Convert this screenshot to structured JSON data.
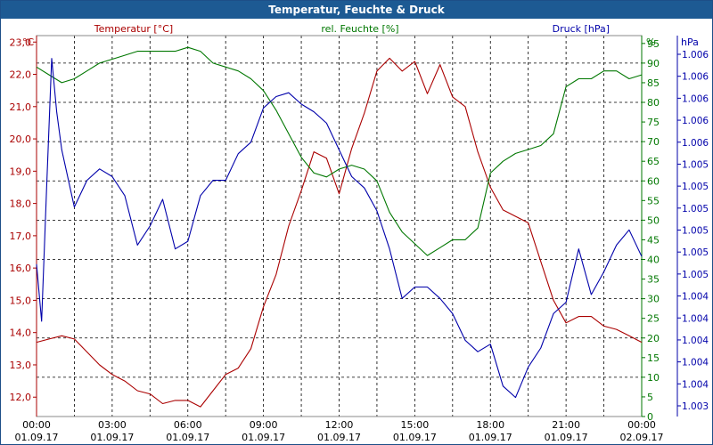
{
  "window": {
    "title": "Temperatur, Feuchte & Druck"
  },
  "chart_data": {
    "type": "line",
    "series_labels": {
      "temperature": "Temperatur [°C]",
      "humidity": "rel. Feuchte [%]",
      "pressure": "Druck [hPa]"
    },
    "axes": {
      "left": {
        "unit": "°C",
        "min": 11.4,
        "max": 23.2,
        "ticks": [
          "23,0",
          "22,0",
          "21,0",
          "20,0",
          "19,0",
          "18,0",
          "17,0",
          "16,0",
          "15,0",
          "14,0",
          "13,0",
          "12,0"
        ],
        "tick_values": [
          23,
          22,
          21,
          20,
          19,
          18,
          17,
          16,
          15,
          14,
          13,
          12
        ]
      },
      "right1": {
        "unit": "%",
        "min": 0,
        "max": 97,
        "ticks": [
          "95",
          "90",
          "85",
          "80",
          "75",
          "70",
          "65",
          "60",
          "55",
          "50",
          "45",
          "40",
          "35",
          "30",
          "25",
          "20",
          "15",
          "10",
          "5",
          "0"
        ],
        "tick_values": [
          95,
          90,
          85,
          80,
          75,
          70,
          65,
          60,
          55,
          50,
          45,
          40,
          35,
          30,
          25,
          20,
          15,
          10,
          5,
          0
        ]
      },
      "right2": {
        "unit": "hPa",
        "ticks": [
          "1.006",
          "1.006",
          "1.006",
          "1.006",
          "1.006",
          "1.005",
          "1.005",
          "1.005",
          "1.005",
          "1.005",
          "1.005",
          "1.004",
          "1.004",
          "1.004",
          "1.004",
          "1.004",
          "1.003"
        ]
      }
    },
    "x_labels": [
      {
        "time": "00:00",
        "date": "01.09.17"
      },
      {
        "time": "03:00",
        "date": "01.09.17"
      },
      {
        "time": "06:00",
        "date": "01.09.17"
      },
      {
        "time": "09:00",
        "date": "01.09.17"
      },
      {
        "time": "12:00",
        "date": "01.09.17"
      },
      {
        "time": "15:00",
        "date": "01.09.17"
      },
      {
        "time": "18:00",
        "date": "01.09.17"
      },
      {
        "time": "21:00",
        "date": "01.09.17"
      },
      {
        "time": "00:00",
        "date": "02.09.17"
      }
    ],
    "x_range_hours": [
      0,
      24
    ],
    "grid": true,
    "colors": {
      "temperature": "#aa0000",
      "humidity": "#007700",
      "pressure": "#0000aa",
      "grid": "#000000"
    },
    "series": [
      {
        "key": "temperature",
        "x": [
          0,
          0.5,
          1,
          1.5,
          2,
          2.5,
          3,
          3.5,
          4,
          4.5,
          5,
          5.5,
          6,
          6.5,
          7,
          7.5,
          8,
          8.5,
          9,
          9.5,
          10,
          10.5,
          11,
          11.5,
          12,
          12.5,
          13,
          13.5,
          14,
          14.5,
          15,
          15.5,
          16,
          16.5,
          17,
          17.5,
          18,
          18.5,
          19,
          19.5,
          20,
          20.5,
          21,
          21.5,
          22,
          22.5,
          23,
          23.5,
          24
        ],
        "values": [
          13.7,
          13.8,
          13.9,
          13.8,
          13.4,
          13.0,
          12.7,
          12.5,
          12.2,
          12.1,
          11.8,
          11.9,
          11.9,
          11.7,
          12.2,
          12.7,
          12.9,
          13.5,
          14.8,
          15.8,
          17.3,
          18.4,
          19.6,
          19.4,
          18.3,
          19.7,
          20.8,
          22.1,
          22.5,
          22.1,
          22.4,
          21.4,
          22.3,
          21.3,
          21.0,
          19.6,
          18.5,
          17.8,
          17.6,
          17.4,
          16.2,
          15.0,
          14.3,
          14.5,
          14.5,
          14.2,
          14.1,
          13.9,
          13.7
        ]
      },
      {
        "key": "humidity",
        "x": [
          0,
          0.5,
          1,
          1.5,
          2,
          2.5,
          3,
          3.5,
          4,
          4.5,
          5,
          5.5,
          6,
          6.5,
          7,
          7.5,
          8,
          8.5,
          9,
          9.5,
          10,
          10.5,
          11,
          11.5,
          12,
          12.5,
          13,
          13.5,
          14,
          14.5,
          15,
          15.5,
          16,
          16.5,
          17,
          17.5,
          18,
          18.5,
          19,
          19.5,
          20,
          20.5,
          21,
          21.5,
          22,
          22.5,
          23,
          23.5,
          24
        ],
        "values": [
          89,
          87,
          85,
          86,
          88,
          90,
          91,
          92,
          93,
          93,
          93,
          93,
          94,
          93,
          90,
          89,
          88,
          86,
          83,
          78,
          72,
          66,
          62,
          61,
          63,
          64,
          63,
          60,
          52,
          47,
          44,
          41,
          43,
          45,
          45,
          48,
          62,
          65,
          67,
          68,
          69,
          72,
          84,
          86,
          86,
          88,
          88,
          86,
          87
        ]
      },
      {
        "key": "pressure",
        "x": [
          0,
          0.2,
          0.4,
          0.6,
          0.8,
          1,
          1.5,
          2,
          2.5,
          3,
          3.5,
          4,
          4.5,
          5,
          5.5,
          6,
          6.5,
          7,
          7.5,
          8,
          8.5,
          9,
          9.5,
          10,
          10.5,
          11,
          11.5,
          12,
          12.5,
          13,
          13.5,
          14,
          14.5,
          15,
          15.5,
          16,
          16.5,
          17,
          17.5,
          18,
          18.5,
          19,
          19.5,
          20,
          20.5,
          21,
          21.5,
          22,
          22.5,
          23,
          23.5,
          24
        ],
        "values": [
          40,
          25,
          60,
          94,
          80,
          70,
          55,
          62,
          65,
          63,
          58,
          45,
          50,
          57,
          44,
          46,
          58,
          62,
          62,
          69,
          72,
          81,
          84,
          85,
          82,
          80,
          77,
          70,
          63,
          60,
          54,
          44,
          31,
          34,
          34,
          31,
          27,
          20,
          17,
          19,
          8,
          5,
          13,
          18,
          27,
          30,
          44,
          32,
          38,
          45,
          49,
          42
        ]
      }
    ]
  }
}
